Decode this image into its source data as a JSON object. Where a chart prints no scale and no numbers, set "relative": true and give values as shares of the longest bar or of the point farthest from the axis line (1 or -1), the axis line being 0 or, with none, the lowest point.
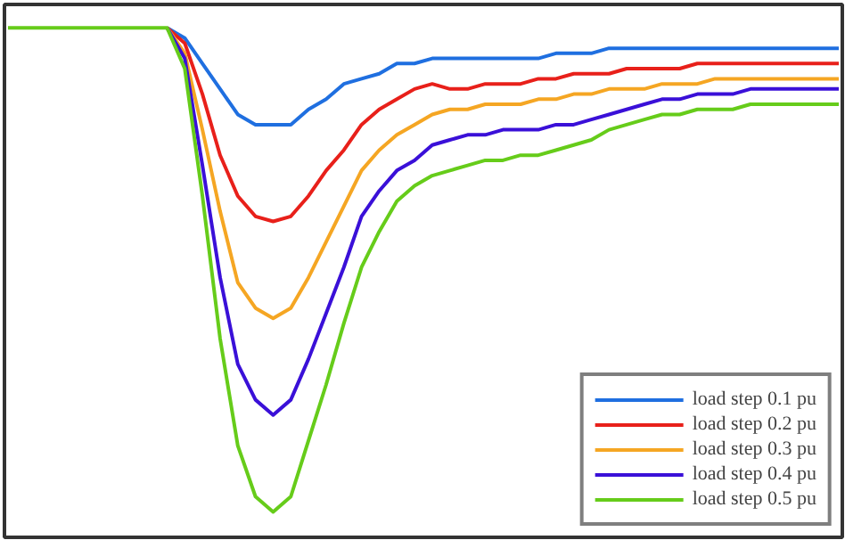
{
  "chart_data": {
    "type": "line",
    "relative": true,
    "tick_labels": false,
    "legend": "bottom right",
    "grid": false,
    "categories": [
      null,
      null,
      null,
      null,
      null,
      null,
      null,
      null,
      null,
      null,
      null,
      null,
      null,
      null,
      null,
      null,
      null,
      null,
      null,
      null,
      null,
      null,
      null,
      null,
      null,
      null,
      null,
      null,
      null,
      null,
      null,
      null,
      null,
      null,
      null,
      null,
      null,
      null,
      null,
      null,
      null,
      null,
      null,
      null,
      null,
      null,
      null,
      null
    ],
    "series": [
      {
        "name": "load step 0.1 pu",
        "color": "#1f6fe0",
        "values": [
          null,
          null,
          null,
          null,
          null,
          null,
          null,
          null,
          null,
          1,
          0.98,
          0.93,
          0.88,
          0.83,
          0.81,
          0.81,
          0.81,
          0.84,
          0.86,
          0.89,
          0.9,
          0.91,
          0.93,
          0.93,
          0.94,
          0.94,
          0.94,
          0.94,
          0.94,
          0.94,
          0.94,
          0.95,
          0.95,
          0.95,
          0.96,
          0.96,
          0.96,
          0.96,
          0.96,
          0.96,
          0.96,
          0.96,
          0.96,
          0.96,
          0.96,
          0.96,
          0.96,
          0.96
        ]
      },
      {
        "name": "load step 0.2 pu",
        "color": "#e8201a",
        "values": [
          null,
          null,
          null,
          null,
          null,
          null,
          null,
          null,
          null,
          1,
          0.97,
          0.87,
          0.75,
          0.67,
          0.63,
          0.62,
          0.63,
          0.67,
          0.72,
          0.76,
          0.81,
          0.84,
          0.86,
          0.88,
          0.89,
          0.88,
          0.88,
          0.89,
          0.89,
          0.89,
          0.9,
          0.9,
          0.91,
          0.91,
          0.91,
          0.92,
          0.92,
          0.92,
          0.92,
          0.93,
          0.93,
          0.93,
          0.93,
          0.93,
          0.93,
          0.93,
          0.93,
          0.93
        ]
      },
      {
        "name": "load step 0.3 pu",
        "color": "#f5a623",
        "values": [
          null,
          null,
          null,
          null,
          null,
          null,
          null,
          null,
          null,
          1,
          0.95,
          0.8,
          0.64,
          0.5,
          0.45,
          0.43,
          0.45,
          0.51,
          0.58,
          0.65,
          0.72,
          0.76,
          0.79,
          0.81,
          0.83,
          0.84,
          0.84,
          0.85,
          0.85,
          0.85,
          0.86,
          0.86,
          0.87,
          0.87,
          0.88,
          0.88,
          0.88,
          0.89,
          0.89,
          0.89,
          0.9,
          0.9,
          0.9,
          0.9,
          0.9,
          0.9,
          0.9,
          0.9
        ]
      },
      {
        "name": "load step 0.4 pu",
        "color": "#3a10d8",
        "values": [
          null,
          null,
          null,
          null,
          null,
          null,
          null,
          null,
          null,
          1,
          0.94,
          0.73,
          0.51,
          0.34,
          0.27,
          0.24,
          0.27,
          0.35,
          0.44,
          0.53,
          0.63,
          0.68,
          0.72,
          0.74,
          0.77,
          0.78,
          0.79,
          0.79,
          0.8,
          0.8,
          0.8,
          0.81,
          0.81,
          0.82,
          0.83,
          0.84,
          0.85,
          0.86,
          0.86,
          0.87,
          0.87,
          0.87,
          0.88,
          0.88,
          0.88,
          0.88,
          0.88,
          0.88
        ]
      },
      {
        "name": "load step 0.5 pu",
        "color": "#66cc1a",
        "values": [
          1,
          1,
          1,
          1,
          1,
          1,
          1,
          1,
          1,
          1,
          0.92,
          0.67,
          0.39,
          0.18,
          0.08,
          0.05,
          0.08,
          0.19,
          0.3,
          0.42,
          0.53,
          0.6,
          0.66,
          0.69,
          0.71,
          0.72,
          0.73,
          0.74,
          0.74,
          0.75,
          0.75,
          0.76,
          0.77,
          0.78,
          0.8,
          0.81,
          0.82,
          0.83,
          0.83,
          0.84,
          0.84,
          0.84,
          0.85,
          0.85,
          0.85,
          0.85,
          0.85,
          0.85
        ]
      }
    ]
  }
}
